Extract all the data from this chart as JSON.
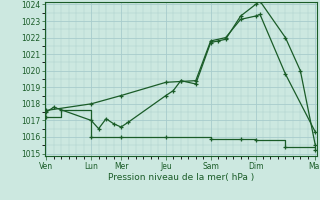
{
  "background_color": "#cce8e0",
  "grid_color": "#a8cccc",
  "line_color": "#1a5c28",
  "xlabel": "Pression niveau de la mer( hPa )",
  "ylim": [
    1015,
    1024
  ],
  "yticks": [
    1015,
    1016,
    1017,
    1018,
    1019,
    1020,
    1021,
    1022,
    1023,
    1024
  ],
  "xtick_labels": [
    "Ven",
    "Lun",
    "Mer",
    "Jeu",
    "Sam",
    "Dim",
    "Mar"
  ],
  "xtick_positions": [
    0,
    3,
    5,
    8,
    11,
    14,
    18
  ],
  "line1_x": [
    0,
    0.5,
    3,
    3.5,
    4,
    4.5,
    5,
    5.5,
    8,
    8.5,
    9,
    10,
    11,
    11.5,
    12,
    13,
    14,
    14.3,
    16,
    17,
    18
  ],
  "line1_y": [
    1017.5,
    1017.8,
    1017.0,
    1016.5,
    1017.1,
    1016.8,
    1016.6,
    1016.9,
    1018.5,
    1018.8,
    1019.4,
    1019.2,
    1021.7,
    1021.8,
    1021.9,
    1023.3,
    1024.0,
    1024.2,
    1022.0,
    1020.0,
    1015.5
  ],
  "line2_x": [
    0,
    3,
    5,
    8,
    9,
    10,
    11,
    12,
    13,
    14,
    14.3,
    16,
    18
  ],
  "line2_y": [
    1017.6,
    1018.0,
    1018.5,
    1019.3,
    1019.35,
    1019.4,
    1021.8,
    1022.0,
    1023.1,
    1023.3,
    1023.4,
    1019.8,
    1016.3
  ],
  "line3_x": [
    0,
    1,
    3,
    5,
    8,
    11,
    13,
    14,
    16,
    18
  ],
  "line3_y": [
    1017.2,
    1017.6,
    1016.0,
    1016.0,
    1016.0,
    1015.9,
    1015.9,
    1015.8,
    1015.4,
    1015.2
  ]
}
